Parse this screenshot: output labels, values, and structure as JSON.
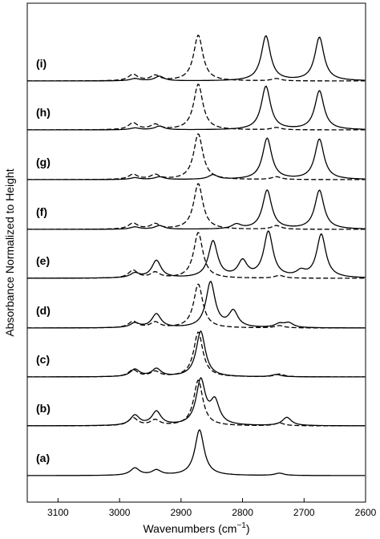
{
  "chart_data": {
    "type": "line",
    "xlabel": "Wavenumbers (cm",
    "xlabel_sup": "−1",
    "xlabel_close": ")",
    "ylabel": "Absorbance Normalized to Height",
    "xlim": [
      3150,
      2600
    ],
    "x_reversed": true,
    "x_ticks": [
      3100,
      3000,
      2900,
      2800,
      2700,
      2600
    ],
    "y_ticks": "none",
    "grid": false,
    "legend": "none",
    "line_color": "#000000",
    "panels": [
      {
        "label": "(a)",
        "solid": [
          [
            2975,
            0.16
          ],
          [
            2940,
            0.11
          ],
          [
            2870,
            1.0
          ],
          [
            2740,
            0.05
          ]
        ],
        "dashed": []
      },
      {
        "label": "(b)",
        "solid": [
          [
            2975,
            0.22
          ],
          [
            2940,
            0.3
          ],
          [
            2868,
            0.98
          ],
          [
            2845,
            0.5
          ],
          [
            2728,
            0.18
          ]
        ],
        "dashed": [
          [
            2978,
            0.17
          ],
          [
            2942,
            0.12
          ],
          [
            2872,
            1.0
          ],
          [
            2740,
            0.06
          ]
        ]
      },
      {
        "label": "(c)",
        "solid": [
          [
            2975,
            0.16
          ],
          [
            2940,
            0.17
          ],
          [
            2868,
            1.0
          ],
          [
            2745,
            0.05
          ]
        ],
        "dashed": [
          [
            2978,
            0.15
          ],
          [
            2942,
            0.11
          ],
          [
            2872,
            0.98
          ],
          [
            2740,
            0.06
          ]
        ]
      },
      {
        "label": "(d)",
        "solid": [
          [
            2975,
            0.1
          ],
          [
            2940,
            0.3
          ],
          [
            2852,
            1.0
          ],
          [
            2815,
            0.35
          ],
          [
            2740,
            0.08
          ],
          [
            2725,
            0.1
          ]
        ],
        "dashed": [
          [
            2978,
            0.14
          ],
          [
            2942,
            0.12
          ],
          [
            2872,
            0.96
          ],
          [
            2740,
            0.05
          ]
        ]
      },
      {
        "label": "(e)",
        "solid": [
          [
            2975,
            0.1
          ],
          [
            2940,
            0.38
          ],
          [
            2848,
            0.8
          ],
          [
            2800,
            0.35
          ],
          [
            2758,
            1.0
          ],
          [
            2705,
            0.12
          ],
          [
            2672,
            0.95
          ]
        ],
        "dashed": [
          [
            2978,
            0.17
          ],
          [
            2942,
            0.12
          ],
          [
            2872,
            1.0
          ],
          [
            2740,
            0.06
          ]
        ]
      },
      {
        "label": "(f)",
        "solid": [
          [
            2975,
            0.05
          ],
          [
            2935,
            0.08
          ],
          [
            2810,
            0.1
          ],
          [
            2760,
            0.85
          ],
          [
            2675,
            0.85
          ]
        ],
        "dashed": [
          [
            2978,
            0.13
          ],
          [
            2942,
            0.11
          ],
          [
            2872,
            1.0
          ],
          [
            2745,
            0.08
          ]
        ]
      },
      {
        "label": "(g)",
        "solid": [
          [
            2975,
            0.04
          ],
          [
            2935,
            0.06
          ],
          [
            2848,
            0.1
          ],
          [
            2760,
            0.9
          ],
          [
            2675,
            0.88
          ]
        ],
        "dashed": [
          [
            2978,
            0.11
          ],
          [
            2942,
            0.1
          ],
          [
            2872,
            1.0
          ],
          [
            2745,
            0.06
          ]
        ]
      },
      {
        "label": "(h)",
        "solid": [
          [
            2975,
            0.04
          ],
          [
            2935,
            0.08
          ],
          [
            2762,
            0.95
          ],
          [
            2675,
            0.85
          ]
        ],
        "dashed": [
          [
            2978,
            0.15
          ],
          [
            2942,
            0.11
          ],
          [
            2872,
            1.0
          ],
          [
            2745,
            0.05
          ]
        ]
      },
      {
        "label": "(i)",
        "solid": [
          [
            2975,
            0.05
          ],
          [
            2935,
            0.1
          ],
          [
            2762,
            0.98
          ],
          [
            2675,
            0.95
          ]
        ],
        "dashed": [
          [
            2978,
            0.14
          ],
          [
            2942,
            0.11
          ],
          [
            2872,
            1.0
          ],
          [
            2745,
            0.05
          ]
        ]
      }
    ]
  }
}
